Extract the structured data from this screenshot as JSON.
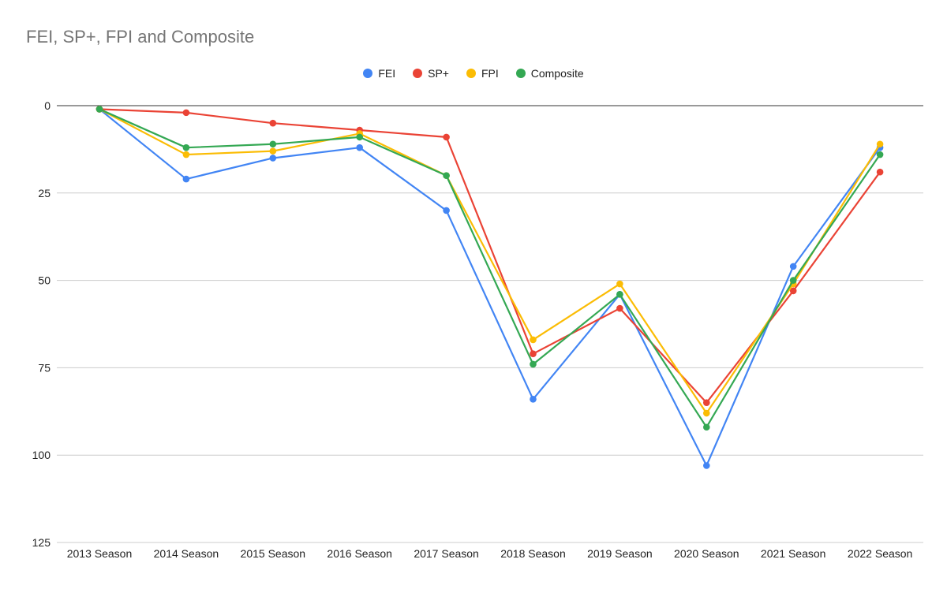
{
  "chart_data": {
    "type": "line",
    "title": "FEI, SP+, FPI and Composite",
    "xlabel": "",
    "ylabel": "",
    "categories": [
      "2013 Season",
      "2014 Season",
      "2015 Season",
      "2016 Season",
      "2017 Season",
      "2018 Season",
      "2019 Season",
      "2020 Season",
      "2021 Season",
      "2022 Season"
    ],
    "ylim": [
      0,
      125
    ],
    "y_reversed": true,
    "yticks": [
      0,
      25,
      50,
      75,
      100,
      125
    ],
    "grid": true,
    "legend": "top",
    "series": [
      {
        "name": "FEI",
        "color": "#4285f4",
        "values": [
          1,
          21,
          15,
          12,
          30,
          84,
          54,
          103,
          46,
          12
        ]
      },
      {
        "name": "SP+",
        "color": "#ea4335",
        "values": [
          1,
          2,
          5,
          7,
          9,
          71,
          58,
          85,
          53,
          19
        ]
      },
      {
        "name": "FPI",
        "color": "#fbbc04",
        "values": [
          1,
          14,
          13,
          8,
          20,
          67,
          51,
          88,
          51,
          11
        ]
      },
      {
        "name": "Composite",
        "color": "#34a853",
        "values": [
          1,
          12,
          11,
          9,
          20,
          74,
          54,
          92,
          50,
          14
        ]
      }
    ]
  }
}
